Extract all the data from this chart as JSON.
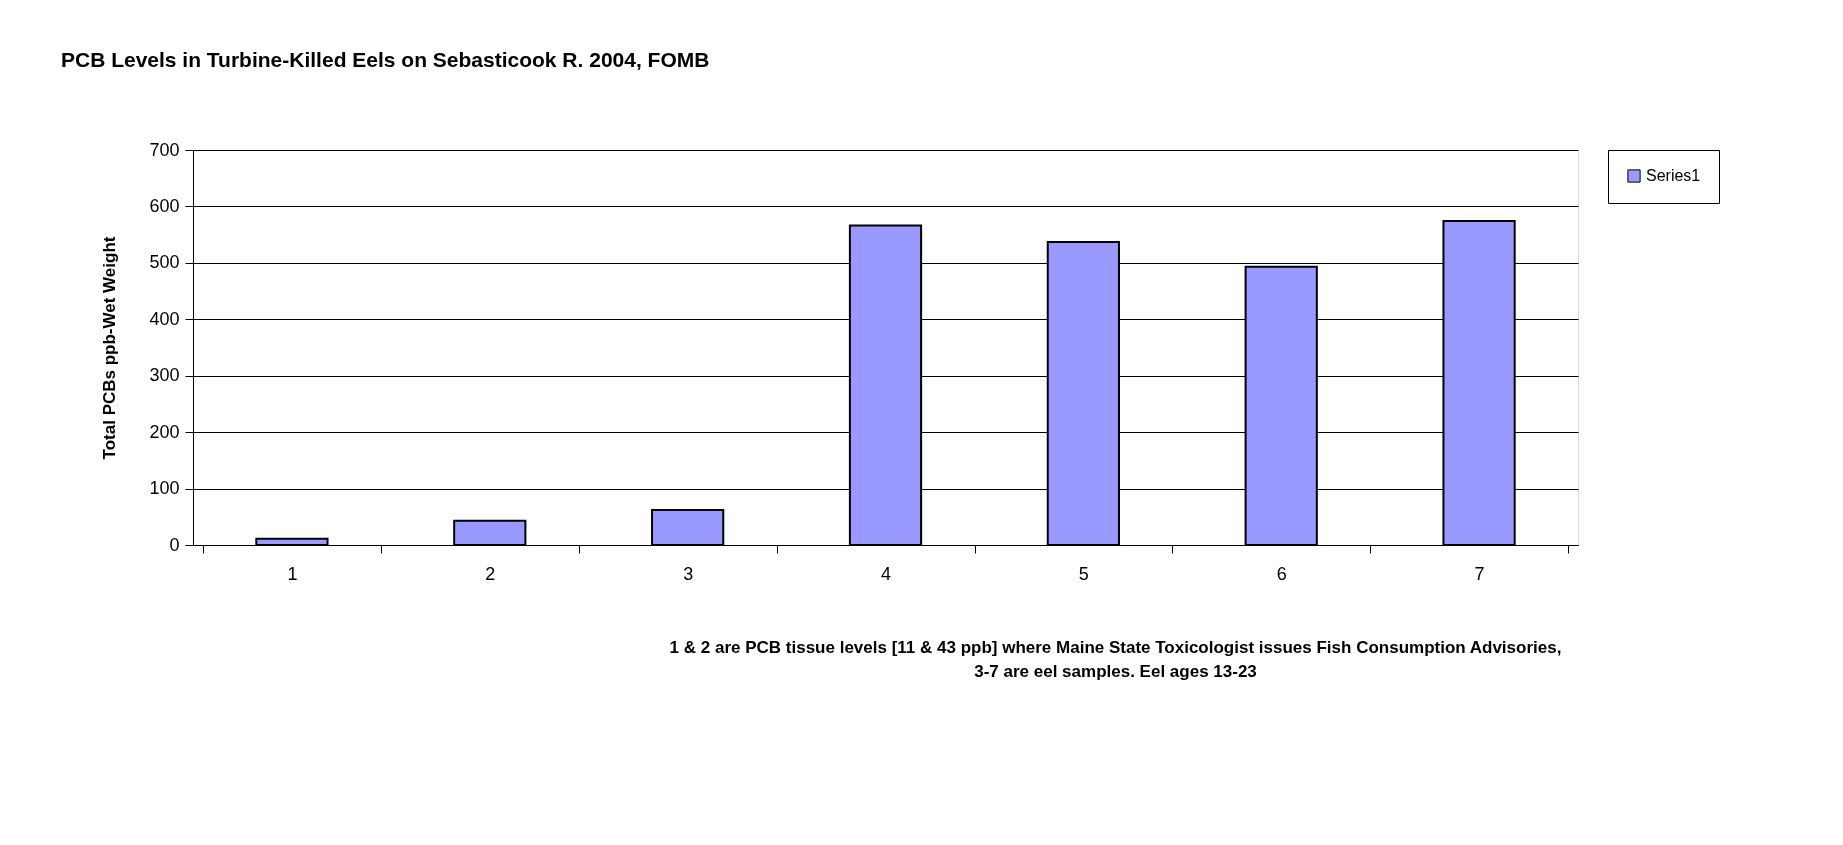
{
  "chart_data": {
    "type": "bar",
    "title": "PCB Levels in Turbine-Killed Eels on Sebasticook R. 2004, FOMB",
    "ylabel": "Total PCBs ppb-Wet Weight",
    "categories": [
      "1",
      "2",
      "3",
      "4",
      "5",
      "6",
      "7"
    ],
    "series": [
      {
        "name": "Series1",
        "color": "#9999ff",
        "values": [
          11,
          43,
          62,
          566,
          537,
          493,
          574
        ]
      }
    ],
    "ylim": [
      0,
      700
    ],
    "yticks": [
      0,
      100,
      200,
      300,
      400,
      500,
      600,
      700
    ],
    "grid": "y",
    "legend": "right",
    "annotations": [
      "1 & 2 are PCB tissue levels [11 & 43 ppb] where Maine State Toxicologist issues Fish Consumption Advisories, 3-7 are eel samples. Eel ages 13-23"
    ]
  }
}
